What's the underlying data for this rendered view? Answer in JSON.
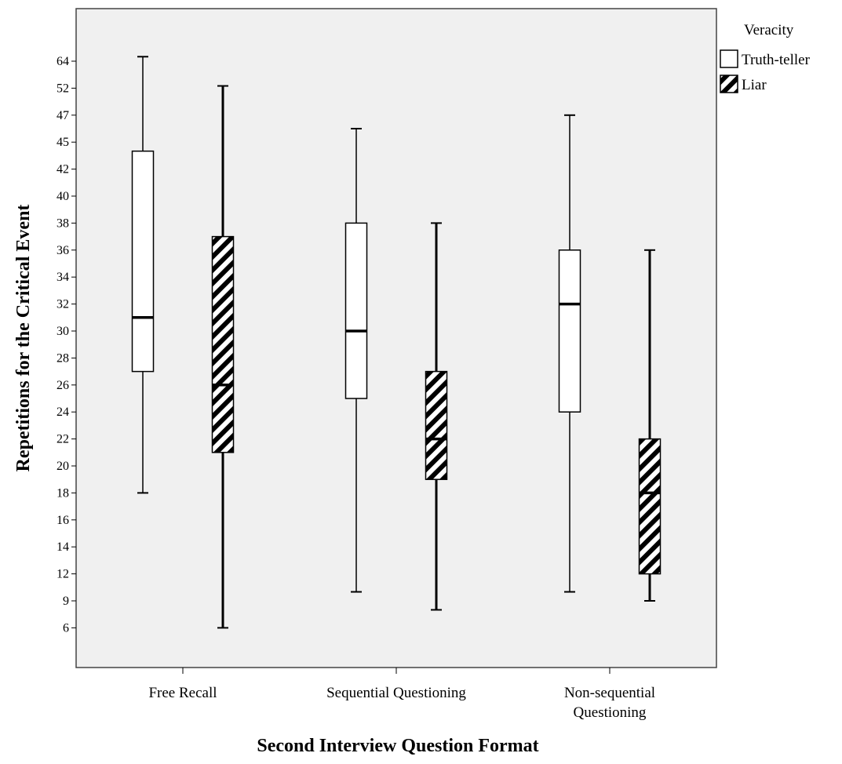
{
  "chart_data": {
    "type": "boxplot",
    "xlabel": "Second Interview Question Format",
    "ylabel": "Repetitions for the Critical Event",
    "ytick_labels": [
      "64",
      "52",
      "47",
      "45",
      "42",
      "40",
      "38",
      "36",
      "34",
      "32",
      "30",
      "28",
      "26",
      "24",
      "22",
      "20",
      "18",
      "16",
      "14",
      "12",
      "9",
      "6"
    ],
    "categories": [
      "Free Recall",
      "Sequential Questioning",
      "Non-sequential Questioning"
    ],
    "category_label_lines": [
      [
        "Free Recall"
      ],
      [
        "Sequential Questioning"
      ],
      [
        "Non-sequential",
        "Questioning"
      ]
    ],
    "legend": {
      "title": "Veracity",
      "position": "top-right, outside plot",
      "entries": [
        {
          "label": "Truth-teller",
          "fill": "white"
        },
        {
          "label": "Liar",
          "fill": "hatched"
        }
      ]
    },
    "series": [
      {
        "name": "Truth-teller",
        "boxes": [
          {
            "category": "Free Recall",
            "whisker_low": 18,
            "q1": 27,
            "median": 31,
            "q3": 44,
            "whisker_high": 66
          },
          {
            "category": "Sequential Questioning",
            "whisker_low": 10,
            "q1": 25,
            "median": 30,
            "q3": 38,
            "whisker_high": 46
          },
          {
            "category": "Non-sequential Questioning",
            "whisker_low": 10,
            "q1": 24,
            "median": 32,
            "q3": 36,
            "whisker_high": 47
          }
        ]
      },
      {
        "name": "Liar",
        "boxes": [
          {
            "category": "Free Recall",
            "whisker_low": 6,
            "q1": 21,
            "median": 26,
            "q3": 37,
            "whisker_high": 53
          },
          {
            "category": "Sequential Questioning",
            "whisker_low": 8,
            "q1": 19,
            "median": 22,
            "q3": 27,
            "whisker_high": 38
          },
          {
            "category": "Non-sequential Questioning",
            "whisker_low": 9,
            "q1": 12,
            "median": 18,
            "q3": 22,
            "whisker_high": 36
          }
        ]
      }
    ],
    "colors": {
      "plot_background": "#f0f0f0",
      "box_fill": "#ffffff",
      "hatch": "#000000",
      "frame": "#444444"
    },
    "grid": false
  }
}
